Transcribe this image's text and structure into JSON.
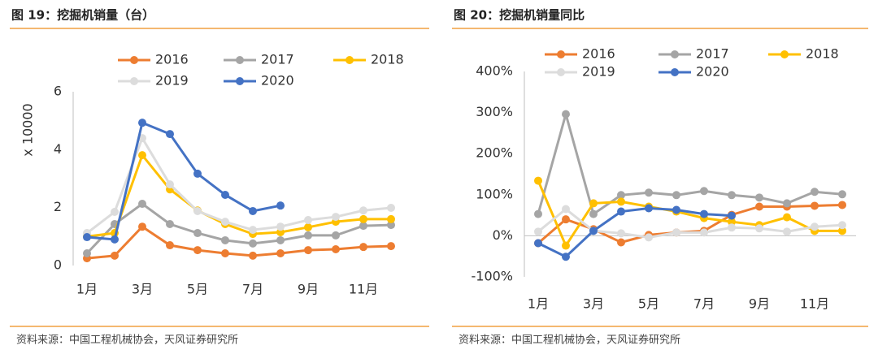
{
  "chart_data": [
    {
      "type": "line",
      "title": "图 19：挖掘机销量（台）",
      "ylabel": "x 10000",
      "source": "资料来源：中国工程机械协会，天风证券研究所",
      "categories": [
        "1月",
        null,
        "3月",
        null,
        "5月",
        null,
        "7月",
        null,
        "9月",
        null,
        "11月",
        null
      ],
      "ylim": [
        0,
        6
      ],
      "yticks": [
        0,
        2,
        4,
        6
      ],
      "series": [
        {
          "name": "2016",
          "color": "#ed7d31",
          "values": [
            0.25,
            0.34,
            1.34,
            0.7,
            0.53,
            0.42,
            0.34,
            0.42,
            0.53,
            0.56,
            0.64,
            0.67
          ]
        },
        {
          "name": "2017",
          "color": "#a5a5a5",
          "values": [
            0.42,
            1.43,
            2.13,
            1.43,
            1.12,
            0.87,
            0.76,
            0.87,
            1.04,
            1.04,
            1.37,
            1.4
          ]
        },
        {
          "name": "2018",
          "color": "#ffc000",
          "values": [
            1.0,
            1.12,
            3.81,
            2.63,
            1.9,
            1.43,
            1.09,
            1.15,
            1.32,
            1.51,
            1.6,
            1.6
          ]
        },
        {
          "name": "2019",
          "color": "#dcdcdc",
          "values": [
            1.12,
            1.85,
            4.4,
            2.8,
            1.88,
            1.51,
            1.23,
            1.34,
            1.57,
            1.68,
            1.9,
            1.99
          ]
        },
        {
          "name": "2020",
          "color": "#4472c4",
          "values": [
            0.98,
            0.9,
            4.93,
            4.54,
            3.17,
            2.44,
            1.88,
            2.07,
            null,
            null,
            null,
            null
          ]
        }
      ]
    },
    {
      "type": "line",
      "title": "图 20：挖掘机销量同比",
      "source": "资料来源：中国工程机械协会，天风证券研究所",
      "categories": [
        "1月",
        null,
        "3月",
        null,
        "5月",
        null,
        "7月",
        null,
        "9月",
        null,
        "11月",
        null
      ],
      "ylim": [
        -100,
        400
      ],
      "yticks": [
        {
          "value": -100,
          "label": "-100%"
        },
        {
          "value": 0,
          "label": "0%"
        },
        {
          "value": 100,
          "label": "100%"
        },
        {
          "value": 200,
          "label": "200%"
        },
        {
          "value": 300,
          "label": "300%"
        },
        {
          "value": 400,
          "label": "400%"
        }
      ],
      "series": [
        {
          "name": "2016",
          "color": "#ed7d31",
          "values": [
            -18,
            40,
            16,
            -16,
            2,
            8,
            12,
            51,
            71,
            71,
            73,
            75
          ]
        },
        {
          "name": "2017",
          "color": "#a5a5a5",
          "values": [
            53,
            296,
            53,
            99,
            105,
            99,
            109,
            99,
            93,
            79,
            107,
            101
          ]
        },
        {
          "name": "2018",
          "color": "#ffc000",
          "values": [
            134,
            -24,
            79,
            83,
            71,
            59,
            43,
            34,
            26,
            45,
            12,
            12
          ]
        },
        {
          "name": "2019",
          "color": "#dcdcdc",
          "values": [
            10,
            65,
            12,
            6,
            -4,
            8,
            8,
            20,
            18,
            10,
            22,
            26
          ]
        },
        {
          "name": "2020",
          "color": "#4472c4",
          "values": [
            -18,
            -51,
            12,
            59,
            67,
            63,
            53,
            49,
            null,
            null,
            null,
            null
          ]
        }
      ]
    }
  ]
}
